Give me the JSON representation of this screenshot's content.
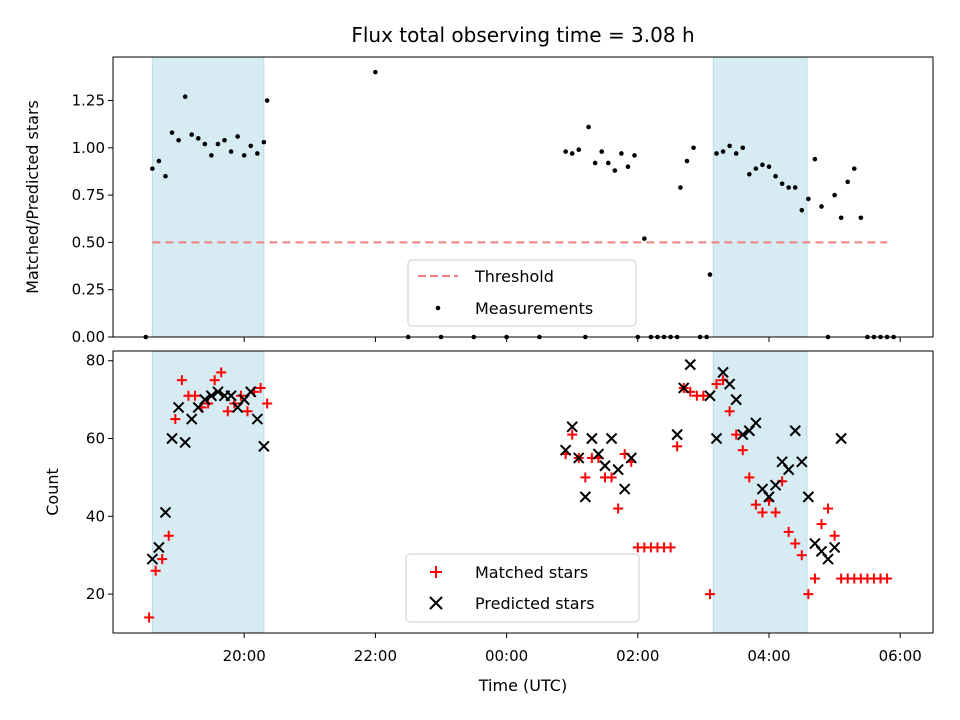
{
  "chart_data": [
    {
      "type": "scatter",
      "title": "Flux total observing time = 3.08 h",
      "xlabel": "",
      "ylabel": "Matched/Predicted stars",
      "ylim": [
        0,
        1.48
      ],
      "yticks": [
        0.0,
        0.25,
        0.5,
        0.75,
        1.0,
        1.25
      ],
      "ytick_labels": [
        "0.00",
        "0.25",
        "0.50",
        "0.75",
        "1.00",
        "1.25"
      ],
      "xlim": [
        18.0,
        30.5
      ],
      "shaded_intervals": [
        [
          18.6,
          20.3
        ],
        [
          27.15,
          28.58
        ]
      ],
      "threshold": {
        "label": "Threshold",
        "value": 0.5,
        "x_range": [
          18.6,
          29.8
        ],
        "color": "#f08080"
      },
      "legend": {
        "entries": [
          "Threshold",
          "Measurements"
        ],
        "placement": "lower center"
      },
      "series": [
        {
          "name": "Measurements",
          "color": "#000000",
          "x": [
            18.5,
            18.6,
            18.7,
            18.8,
            18.9,
            19.0,
            19.1,
            19.2,
            19.3,
            19.4,
            19.5,
            19.6,
            19.7,
            19.8,
            19.9,
            20.0,
            20.1,
            20.2,
            20.3,
            20.35,
            22.0,
            22.5,
            23.0,
            23.5,
            24.0,
            24.5,
            24.9,
            25.0,
            25.1,
            25.2,
            25.25,
            25.35,
            25.45,
            25.55,
            25.65,
            25.75,
            25.85,
            25.95,
            26.0,
            26.1,
            26.2,
            26.3,
            26.4,
            26.5,
            26.6,
            26.65,
            26.75,
            26.85,
            26.95,
            27.05,
            27.1,
            27.2,
            27.3,
            27.4,
            27.5,
            27.6,
            27.7,
            27.8,
            27.9,
            28.0,
            28.1,
            28.2,
            28.3,
            28.4,
            28.5,
            28.6,
            28.7,
            28.8,
            28.9,
            29.0,
            29.1,
            29.2,
            29.3,
            29.4,
            29.5,
            29.6,
            29.7,
            29.8,
            29.9
          ],
          "y": [
            0.0,
            0.89,
            0.93,
            0.85,
            1.08,
            1.04,
            1.27,
            1.07,
            1.05,
            1.02,
            0.96,
            1.02,
            1.04,
            0.98,
            1.06,
            0.96,
            1.01,
            0.97,
            1.03,
            1.25,
            1.4,
            0.0,
            0.0,
            0.0,
            0.0,
            0.0,
            0.98,
            0.97,
            0.99,
            0.0,
            1.11,
            0.92,
            0.98,
            0.92,
            0.88,
            0.97,
            0.9,
            0.96,
            0.0,
            0.52,
            0.0,
            0.0,
            0.0,
            0.0,
            0.0,
            0.79,
            0.93,
            1.0,
            0.0,
            0.0,
            0.33,
            0.97,
            0.98,
            1.01,
            0.97,
            1.0,
            0.86,
            0.89,
            0.91,
            0.9,
            0.85,
            0.81,
            0.79,
            0.79,
            0.67,
            0.73,
            0.94,
            0.69,
            0.0,
            0.75,
            0.63,
            0.82,
            0.89,
            0.63,
            0.0,
            0.0,
            0.0,
            0.0,
            0.0
          ]
        }
      ]
    },
    {
      "type": "scatter",
      "title": "",
      "xlabel": "Time (UTC)",
      "ylabel": "Count",
      "ylim": [
        10,
        82.5
      ],
      "yticks": [
        20,
        40,
        60,
        80
      ],
      "ytick_labels": [
        "20",
        "40",
        "60",
        "80"
      ],
      "xlim": [
        18.0,
        30.5
      ],
      "xticks": [
        20,
        22,
        24,
        26,
        28,
        30
      ],
      "xtick_labels": [
        "20:00",
        "22:00",
        "00:00",
        "02:00",
        "04:00",
        "06:00"
      ],
      "shaded_intervals": [
        [
          18.6,
          20.3
        ],
        [
          27.15,
          28.58
        ]
      ],
      "legend": {
        "entries": [
          "Matched stars",
          "Predicted stars"
        ],
        "placement": "lower center"
      },
      "series": [
        {
          "name": "Matched stars",
          "marker": "+",
          "color": "#ff0000",
          "x": [
            18.55,
            18.65,
            18.75,
            18.85,
            18.95,
            19.05,
            19.15,
            19.25,
            19.35,
            19.45,
            19.55,
            19.65,
            19.75,
            19.85,
            19.95,
            20.05,
            20.15,
            20.25,
            20.35,
            24.9,
            25.0,
            25.1,
            25.2,
            25.3,
            25.4,
            25.5,
            25.6,
            25.7,
            25.8,
            25.9,
            26.0,
            26.1,
            26.2,
            26.3,
            26.4,
            26.5,
            26.6,
            26.7,
            26.8,
            26.9,
            27.0,
            27.1,
            27.2,
            27.3,
            27.4,
            27.5,
            27.6,
            27.7,
            27.8,
            27.9,
            28.0,
            28.1,
            28.2,
            28.3,
            28.4,
            28.5,
            28.6,
            28.7,
            28.8,
            28.9,
            29.0,
            29.1,
            29.2,
            29.3,
            29.4,
            29.5,
            29.6,
            29.7,
            29.8
          ],
          "y": [
            14,
            26,
            29,
            35,
            65,
            75,
            71,
            71,
            68,
            69,
            75,
            77,
            67,
            69,
            71,
            67,
            72,
            73,
            69,
            56,
            61,
            55,
            50,
            55,
            55,
            50,
            50,
            42,
            56,
            54,
            32,
            32,
            32,
            32,
            32,
            32,
            58,
            73,
            72,
            71,
            71,
            20,
            74,
            75,
            67,
            61,
            57,
            50,
            43,
            41,
            44,
            41,
            49,
            36,
            33,
            30,
            20,
            24,
            38,
            42,
            35,
            24,
            24,
            24,
            24,
            24,
            24,
            24,
            24
          ]
        },
        {
          "name": "Predicted stars",
          "marker": "x",
          "color": "#000000",
          "x": [
            18.6,
            18.7,
            18.8,
            18.9,
            19.0,
            19.1,
            19.2,
            19.3,
            19.4,
            19.5,
            19.6,
            19.7,
            19.8,
            19.9,
            20.0,
            20.1,
            20.2,
            20.3,
            24.9,
            25.0,
            25.1,
            25.2,
            25.3,
            25.4,
            25.5,
            25.6,
            25.7,
            25.8,
            25.9,
            26.6,
            26.7,
            26.8,
            27.1,
            27.2,
            27.3,
            27.4,
            27.5,
            27.6,
            27.7,
            27.8,
            27.9,
            28.0,
            28.1,
            28.2,
            28.3,
            28.4,
            28.5,
            28.6,
            28.7,
            28.8,
            28.9,
            29.0,
            29.1
          ],
          "y": [
            29,
            32,
            41,
            60,
            68,
            59,
            65,
            68,
            70,
            71,
            72,
            71,
            71,
            68,
            70,
            72,
            65,
            58,
            57,
            63,
            55,
            45,
            60,
            56,
            53,
            60,
            52,
            47,
            55,
            61,
            73,
            79,
            71,
            60,
            77,
            74,
            70,
            61,
            62,
            64,
            47,
            45,
            48,
            54,
            52,
            62,
            54,
            45,
            33,
            31,
            29,
            32,
            60
          ]
        }
      ]
    }
  ]
}
